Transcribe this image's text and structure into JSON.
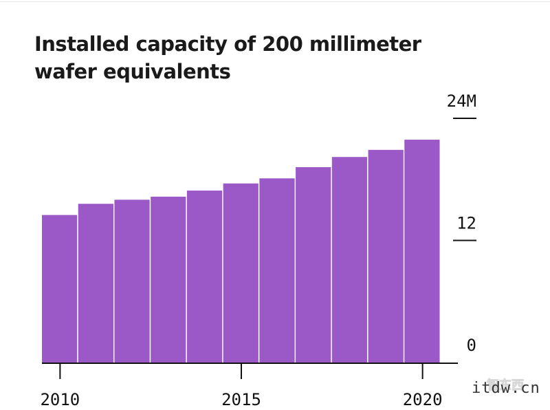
{
  "chart_data": {
    "type": "bar",
    "title": "Installed capacity of 200 millimeter wafer equivalents",
    "x": [
      2010,
      2011,
      2012,
      2013,
      2014,
      2015,
      2016,
      2017,
      2018,
      2019,
      2020
    ],
    "values": [
      14.5,
      15.6,
      16.0,
      16.3,
      16.9,
      17.6,
      18.1,
      19.2,
      20.2,
      20.9,
      21.9
    ],
    "ylim": [
      0,
      24
    ],
    "y_ticks": [
      {
        "value": 24,
        "label": "24M"
      },
      {
        "value": 12,
        "label": "12"
      },
      {
        "value": 0,
        "label": "0"
      }
    ],
    "x_ticks": [
      {
        "value": 2010,
        "label": "2010"
      },
      {
        "value": 2015,
        "label": "2015"
      },
      {
        "value": 2020,
        "label": "2020"
      }
    ],
    "y_axis_side": "right",
    "grid": false,
    "bar_color": "#9b59c8"
  },
  "watermark": {
    "text": "itdw.cn",
    "logo_text": "智东西"
  }
}
